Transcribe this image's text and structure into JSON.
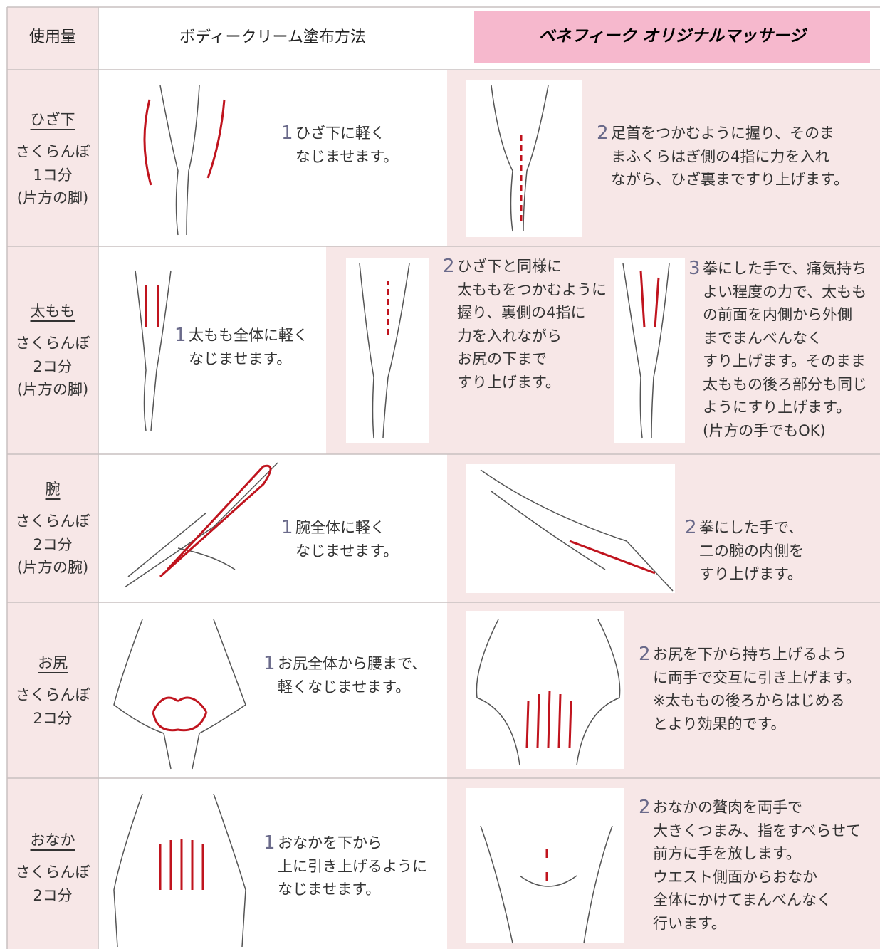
{
  "header": {
    "amount": "使用量",
    "method": "ボディークリーム塗布方法",
    "massage": "ベネフィーク オリジナルマッサージ"
  },
  "rows": [
    {
      "part": "ひざ下",
      "amount": [
        "さくらんぼ",
        "1コ分",
        "(片方の脚)"
      ],
      "steps": [
        {
          "num": "1",
          "lines": [
            "ひざ下に軽く",
            "なじませます。"
          ]
        },
        {
          "num": "2",
          "lines": [
            "足首をつかむように握り、そのま",
            "まふくらはぎ側の4指に力を入れ",
            "ながら、ひざ裏まですり上げます。"
          ]
        }
      ]
    },
    {
      "part": "太もも",
      "amount": [
        "さくらんぼ",
        "2コ分",
        "(片方の脚)"
      ],
      "steps": [
        {
          "num": "1",
          "lines": [
            "太もも全体に軽く",
            "なじませます。"
          ]
        },
        {
          "num": "2",
          "lines": [
            "ひざ下と同様に",
            "太ももをつかむように",
            "握り、裏側の4指に",
            "力を入れながら",
            "お尻の下まで",
            "すり上げます。"
          ]
        },
        {
          "num": "3",
          "lines": [
            "拳にした手で、痛気持ち",
            "よい程度の力で、太もも",
            "の前面を内側から外側",
            "までまんべんなく",
            "すり上げます。そのまま",
            "太ももの後ろ部分も同じ",
            "ようにすり上げます。",
            "(片方の手でもOK)"
          ]
        }
      ]
    },
    {
      "part": "腕",
      "amount": [
        "さくらんぼ",
        "2コ分",
        "(片方の腕)"
      ],
      "steps": [
        {
          "num": "1",
          "lines": [
            "腕全体に軽く",
            "なじませます。"
          ]
        },
        {
          "num": "2",
          "lines": [
            "拳にした手で、",
            "二の腕の内側を",
            "すり上げます。"
          ]
        }
      ]
    },
    {
      "part": "お尻",
      "amount": [
        "さくらんぼ",
        "2コ分"
      ],
      "steps": [
        {
          "num": "1",
          "lines": [
            "お尻全体から腰まで、",
            "軽くなじませます。"
          ]
        },
        {
          "num": "2",
          "lines": [
            "お尻を下から持ち上げるよう",
            "に両手で交互に引き上げます。",
            "※太ももの後ろからはじめる",
            "とより効果的です。"
          ]
        }
      ]
    },
    {
      "part": "おなか",
      "amount": [
        "さくらんぼ",
        "2コ分"
      ],
      "steps": [
        {
          "num": "1",
          "lines": [
            "おなかを下から",
            "上に引き上げるように",
            "なじませます。"
          ]
        },
        {
          "num": "2",
          "lines": [
            "おなかの贅肉を両手で",
            "大きくつまみ、指をすべらせて",
            "前方に手を放します。",
            "ウエスト側面からおなか",
            "全体にかけてまんべんなく",
            "行います。"
          ]
        }
      ]
    }
  ]
}
